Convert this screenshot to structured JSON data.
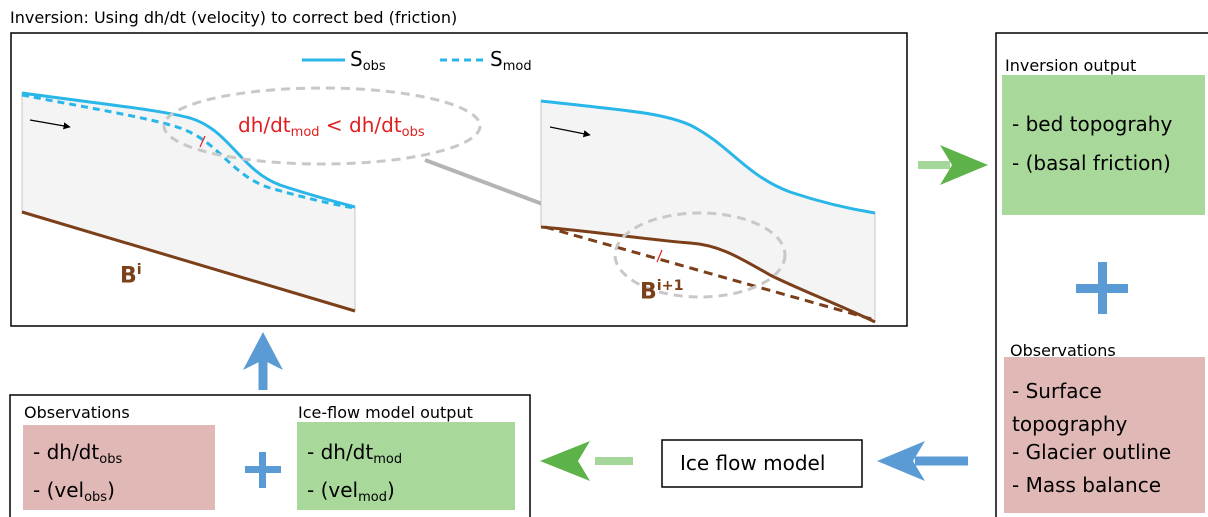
{
  "title": "Inversion: Using dh/dt (velocity) to correct bed (friction)",
  "legend": [
    {
      "base": "S",
      "sub": "obs"
    },
    {
      "base": "S",
      "sub": "mod"
    }
  ],
  "annotation": {
    "lhs": {
      "base": "dh/dt",
      "sub": "mod"
    },
    "op": "<",
    "rhs": {
      "base": "dh/dt",
      "sub": "obs"
    }
  },
  "bed_labels": [
    {
      "base": "B",
      "sup": "i"
    },
    {
      "base": "B",
      "sup": "i+1"
    }
  ],
  "inversion_output": {
    "title": "Inversion output",
    "items": [
      "- bed topograhy",
      "- (basal friction)"
    ]
  },
  "observations_right": {
    "title": "Observations",
    "items": [
      "- Surface topography",
      "- Glacier outline",
      "- Mass balance"
    ]
  },
  "observations_left": {
    "title": "Observations",
    "items": [
      {
        "base": "- dh/dt",
        "sub": "obs",
        "after": ""
      },
      {
        "base": "- (vel",
        "sub": "obs",
        "after": ")"
      }
    ]
  },
  "model_output": {
    "title": "Ice-flow model output",
    "items": [
      {
        "base": "- dh/dt",
        "sub": "mod",
        "after": ""
      },
      {
        "base": "- (vel",
        "sub": "mod",
        "after": ")"
      }
    ]
  },
  "ice_flow_model": "Ice flow model"
}
